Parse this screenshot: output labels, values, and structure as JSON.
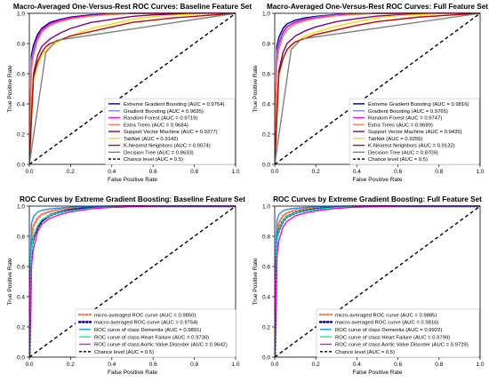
{
  "chart_data": [
    {
      "type": "line",
      "title": "Macro-Averaged One-Versus-Rest ROC Curves: Baseline Feature Set",
      "xlabel": "False Positive Rate",
      "ylabel": "True Positive Rate",
      "xlim": [
        0,
        1
      ],
      "ylim": [
        0,
        1
      ],
      "xticks": [
        0.0,
        0.2,
        0.4,
        0.6,
        0.8,
        1.0
      ],
      "yticks": [
        0.0,
        0.2,
        0.4,
        0.6,
        0.8,
        1.0
      ],
      "grid": false,
      "legend_loc": "bottom-right",
      "series": [
        {
          "name": "Extreme Gradient Boosting (AUC = 0.9754)",
          "color": "#000080",
          "style": "solid",
          "x": [
            0,
            0.01,
            0.02,
            0.04,
            0.06,
            0.1,
            0.15,
            0.2,
            0.3,
            0.4,
            0.5,
            0.6,
            0.8,
            1.0
          ],
          "y": [
            0,
            0.72,
            0.79,
            0.86,
            0.9,
            0.94,
            0.96,
            0.975,
            0.99,
            0.995,
            1,
            1,
            1,
            1
          ]
        },
        {
          "name": "Gradient Boosting (AUC = 0.9695)",
          "color": "#6495ED",
          "style": "solid",
          "x": [
            0,
            0.01,
            0.02,
            0.04,
            0.06,
            0.1,
            0.15,
            0.2,
            0.3,
            0.4,
            0.5,
            0.6,
            0.8,
            1.0
          ],
          "y": [
            0,
            0.68,
            0.76,
            0.84,
            0.88,
            0.925,
            0.95,
            0.965,
            0.985,
            0.993,
            1,
            1,
            1,
            1
          ]
        },
        {
          "name": "Random Forest (AUC = 0.9719)",
          "color": "#FF00FF",
          "style": "solid",
          "x": [
            0,
            0.01,
            0.02,
            0.04,
            0.06,
            0.1,
            0.15,
            0.2,
            0.3,
            0.4,
            0.5,
            0.6,
            0.8,
            1.0
          ],
          "y": [
            0,
            0.64,
            0.74,
            0.84,
            0.89,
            0.93,
            0.955,
            0.97,
            0.985,
            0.994,
            1,
            1,
            1,
            1
          ]
        },
        {
          "name": "Extra Trees (AUC = 0.9684)",
          "color": "#FF7F50",
          "style": "solid",
          "x": [
            0,
            0.01,
            0.02,
            0.04,
            0.06,
            0.1,
            0.15,
            0.2,
            0.3,
            0.4,
            0.5,
            0.6,
            0.8,
            1.0
          ],
          "y": [
            0,
            0.62,
            0.72,
            0.82,
            0.875,
            0.92,
            0.945,
            0.962,
            0.982,
            0.992,
            1,
            1,
            1,
            1
          ]
        },
        {
          "name": "Support Vector Machine (AUC = 0.9377)",
          "color": "#800080",
          "style": "solid",
          "x": [
            0,
            0.02,
            0.04,
            0.06,
            0.1,
            0.15,
            0.2,
            0.3,
            0.4,
            0.5,
            0.6,
            0.8,
            1.0
          ],
          "y": [
            0,
            0.6,
            0.72,
            0.78,
            0.83,
            0.87,
            0.9,
            0.94,
            0.96,
            0.98,
            0.99,
            1,
            1
          ]
        },
        {
          "name": "TabNet (AUC = 0.9142)",
          "color": "#FFD700",
          "style": "solid",
          "x": [
            0,
            0.02,
            0.04,
            0.06,
            0.1,
            0.15,
            0.2,
            0.3,
            0.4,
            0.5,
            0.6,
            0.8,
            1.0
          ],
          "y": [
            0,
            0.55,
            0.66,
            0.72,
            0.78,
            0.82,
            0.85,
            0.9,
            0.93,
            0.96,
            0.98,
            0.995,
            1
          ]
        },
        {
          "name": "K-Nearest Neighbors (AUC = 0.9074)",
          "color": "#CC0000",
          "style": "solid",
          "x": [
            0,
            0.02,
            0.04,
            0.06,
            0.08,
            0.1,
            0.2,
            0.3,
            0.4,
            0.5,
            0.7,
            0.9,
            1.0
          ],
          "y": [
            0,
            0.58,
            0.68,
            0.74,
            0.78,
            0.8,
            0.85,
            0.88,
            0.91,
            0.94,
            0.97,
            0.99,
            1
          ]
        },
        {
          "name": "Decision Tree (AUC = 0.8633)",
          "color": "#808080",
          "style": "solid",
          "x": [
            0,
            0.08,
            0.13,
            1.0
          ],
          "y": [
            0,
            0.74,
            0.82,
            1
          ]
        },
        {
          "name": "Chance level (AUC = 0.5)",
          "color": "#000000",
          "style": "dashed",
          "x": [
            0,
            1
          ],
          "y": [
            0,
            1
          ]
        }
      ]
    },
    {
      "type": "line",
      "title": "Macro-Averaged One-Versus-Rest ROC Curves: Full Feature Set",
      "xlabel": "False Positive Rate",
      "ylabel": "True Positive Rate",
      "xlim": [
        0,
        1
      ],
      "ylim": [
        0,
        1
      ],
      "xticks": [
        0.0,
        0.2,
        0.4,
        0.6,
        0.8,
        1.0
      ],
      "yticks": [
        0.0,
        0.2,
        0.4,
        0.6,
        0.8,
        1.0
      ],
      "grid": false,
      "legend_loc": "bottom-right",
      "series": [
        {
          "name": "Extreme Gradient Boosting (AUC = 0.9816)",
          "color": "#000080",
          "style": "solid",
          "x": [
            0,
            0.01,
            0.02,
            0.04,
            0.06,
            0.1,
            0.15,
            0.2,
            0.3,
            0.4,
            0.5,
            0.6,
            0.8,
            1.0
          ],
          "y": [
            0,
            0.78,
            0.84,
            0.9,
            0.93,
            0.955,
            0.97,
            0.98,
            0.992,
            0.997,
            1,
            1,
            1,
            1
          ]
        },
        {
          "name": "Gradient Boosting (AUC = 0.9765)",
          "color": "#6495ED",
          "style": "solid",
          "x": [
            0,
            0.01,
            0.02,
            0.04,
            0.06,
            0.1,
            0.15,
            0.2,
            0.3,
            0.4,
            0.5,
            0.6,
            0.8,
            1.0
          ],
          "y": [
            0,
            0.74,
            0.81,
            0.88,
            0.915,
            0.945,
            0.962,
            0.975,
            0.99,
            0.996,
            1,
            1,
            1,
            1
          ]
        },
        {
          "name": "Random Forest (AUC = 0.9747)",
          "color": "#FF00FF",
          "style": "solid",
          "x": [
            0,
            0.01,
            0.02,
            0.04,
            0.06,
            0.1,
            0.15,
            0.2,
            0.3,
            0.4,
            0.5,
            0.6,
            0.8,
            1.0
          ],
          "y": [
            0,
            0.7,
            0.79,
            0.87,
            0.91,
            0.94,
            0.96,
            0.972,
            0.988,
            0.995,
            1,
            1,
            1,
            1
          ]
        },
        {
          "name": "Extra Trees (AUC = 0.9689)",
          "color": "#FF7F50",
          "style": "solid",
          "x": [
            0,
            0.01,
            0.02,
            0.04,
            0.06,
            0.1,
            0.15,
            0.2,
            0.3,
            0.4,
            0.5,
            0.6,
            0.8,
            1.0
          ],
          "y": [
            0,
            0.66,
            0.76,
            0.85,
            0.89,
            0.93,
            0.952,
            0.966,
            0.984,
            0.993,
            1,
            1,
            1,
            1
          ]
        },
        {
          "name": "Support Vector Machine (AUC = 0.9435)",
          "color": "#800080",
          "style": "solid",
          "x": [
            0,
            0.02,
            0.04,
            0.06,
            0.1,
            0.15,
            0.2,
            0.3,
            0.4,
            0.5,
            0.6,
            0.8,
            1.0
          ],
          "y": [
            0,
            0.62,
            0.74,
            0.8,
            0.85,
            0.885,
            0.91,
            0.945,
            0.965,
            0.982,
            0.99,
            1,
            1
          ]
        },
        {
          "name": "TabNet (AUC = 0.9255)",
          "color": "#FFD700",
          "style": "solid",
          "x": [
            0,
            0.02,
            0.04,
            0.06,
            0.1,
            0.15,
            0.2,
            0.3,
            0.4,
            0.5,
            0.6,
            0.8,
            1.0
          ],
          "y": [
            0,
            0.58,
            0.7,
            0.76,
            0.81,
            0.85,
            0.875,
            0.915,
            0.945,
            0.97,
            0.985,
            0.997,
            1
          ]
        },
        {
          "name": "K-Nearest Neighbors (AUC = 0.9132)",
          "color": "#CC0000",
          "style": "solid",
          "x": [
            0,
            0.02,
            0.04,
            0.06,
            0.08,
            0.1,
            0.2,
            0.3,
            0.4,
            0.5,
            0.7,
            0.9,
            1.0
          ],
          "y": [
            0,
            0.6,
            0.7,
            0.76,
            0.79,
            0.81,
            0.86,
            0.89,
            0.92,
            0.945,
            0.975,
            0.992,
            1
          ]
        },
        {
          "name": "Decision Tree (AUC = 0.8709)",
          "color": "#808080",
          "style": "solid",
          "x": [
            0,
            0.08,
            0.13,
            1.0
          ],
          "y": [
            0,
            0.76,
            0.83,
            1
          ]
        },
        {
          "name": "Chance level (AUC = 0.5)",
          "color": "#000000",
          "style": "dashed",
          "x": [
            0,
            1
          ],
          "y": [
            0,
            1
          ]
        }
      ]
    },
    {
      "type": "line",
      "title": "ROC Curves by Extreme Gradient Boosting: Baseline Feature Set",
      "xlabel": "False Positive Rate",
      "ylabel": "True Positive Rate",
      "xlim": [
        0,
        1
      ],
      "ylim": [
        0,
        1
      ],
      "xticks": [
        0.0,
        0.2,
        0.4,
        0.6,
        0.8,
        1.0
      ],
      "yticks": [
        0.0,
        0.2,
        0.4,
        0.6,
        0.8,
        1.0
      ],
      "grid": false,
      "legend_loc": "bottom-right",
      "series": [
        {
          "name": "micro-averaged ROC curve (AUC = 0.9850)",
          "color": "#FF7F50",
          "style": "dotted",
          "x": [
            0,
            0.01,
            0.02,
            0.04,
            0.06,
            0.1,
            0.15,
            0.2,
            0.3,
            0.4,
            0.5,
            1.0
          ],
          "y": [
            0,
            0.78,
            0.87,
            0.92,
            0.945,
            0.965,
            0.978,
            0.987,
            0.995,
            0.999,
            1,
            1
          ]
        },
        {
          "name": "macro-averaged ROC curve (AUC = 0.9754)",
          "color": "#000080",
          "style": "dotted",
          "x": [
            0,
            0.01,
            0.02,
            0.04,
            0.06,
            0.1,
            0.15,
            0.2,
            0.3,
            0.4,
            0.5,
            1.0
          ],
          "y": [
            0,
            0.72,
            0.79,
            0.86,
            0.9,
            0.94,
            0.96,
            0.975,
            0.99,
            0.995,
            1,
            1
          ]
        },
        {
          "name": "ROC curve of class Dementia (AUC = 0.9891)",
          "color": "#1E90FF",
          "style": "solid",
          "x": [
            0,
            0.01,
            0.02,
            0.04,
            0.06,
            0.1,
            0.15,
            0.2,
            0.3,
            0.4,
            0.6,
            1.0
          ],
          "y": [
            0,
            0.88,
            0.93,
            0.96,
            0.972,
            0.982,
            0.988,
            0.993,
            0.997,
            1,
            1,
            1
          ]
        },
        {
          "name": "ROC curve of class Heart Failure (AUC = 0.9730)",
          "color": "#00FA9A",
          "style": "solid",
          "x": [
            0,
            0.01,
            0.02,
            0.04,
            0.06,
            0.1,
            0.15,
            0.2,
            0.3,
            0.4,
            0.6,
            1.0
          ],
          "y": [
            0,
            0.7,
            0.8,
            0.87,
            0.91,
            0.94,
            0.958,
            0.97,
            0.985,
            0.994,
            1,
            1
          ]
        },
        {
          "name": "ROC curve of class Aortic Valve Disorder (AUC = 0.9642)",
          "color": "#FF00FF",
          "style": "solid",
          "x": [
            0,
            0.01,
            0.02,
            0.04,
            0.06,
            0.1,
            0.15,
            0.2,
            0.3,
            0.4,
            0.6,
            1.0
          ],
          "y": [
            0,
            0.6,
            0.72,
            0.83,
            0.88,
            0.92,
            0.945,
            0.962,
            0.982,
            0.992,
            1,
            1
          ]
        },
        {
          "name": "Chance level (AUC = 0.5)",
          "color": "#000000",
          "style": "dashed",
          "x": [
            0,
            1
          ],
          "y": [
            0,
            1
          ]
        }
      ]
    },
    {
      "type": "line",
      "title": "ROC Curves by Extreme Gradient Boosting: Full Feature Set",
      "xlabel": "False Positive Rate",
      "ylabel": "True Positive Rate",
      "xlim": [
        0,
        1
      ],
      "ylim": [
        0,
        1
      ],
      "xticks": [
        0.0,
        0.2,
        0.4,
        0.6,
        0.8,
        1.0
      ],
      "yticks": [
        0.0,
        0.2,
        0.4,
        0.6,
        0.8,
        1.0
      ],
      "grid": false,
      "legend_loc": "bottom-right",
      "series": [
        {
          "name": "micro-averaged ROC curve (AUC = 0.9885)",
          "color": "#FF7F50",
          "style": "dotted",
          "x": [
            0,
            0.01,
            0.02,
            0.04,
            0.06,
            0.1,
            0.15,
            0.2,
            0.3,
            0.4,
            0.5,
            1.0
          ],
          "y": [
            0,
            0.82,
            0.89,
            0.935,
            0.955,
            0.972,
            0.983,
            0.99,
            0.996,
            0.999,
            1,
            1
          ]
        },
        {
          "name": "macro-averaged ROC curve (AUC = 0.9816)",
          "color": "#000080",
          "style": "dotted",
          "x": [
            0,
            0.01,
            0.02,
            0.04,
            0.06,
            0.1,
            0.15,
            0.2,
            0.3,
            0.4,
            0.5,
            1.0
          ],
          "y": [
            0,
            0.78,
            0.84,
            0.9,
            0.93,
            0.955,
            0.97,
            0.98,
            0.992,
            0.997,
            1,
            1
          ]
        },
        {
          "name": "ROC curve of class Dementia (AUC = 0.9922)",
          "color": "#1E90FF",
          "style": "solid",
          "x": [
            0,
            0.01,
            0.02,
            0.04,
            0.06,
            0.1,
            0.15,
            0.2,
            0.3,
            0.4,
            0.6,
            1.0
          ],
          "y": [
            0,
            0.9,
            0.945,
            0.968,
            0.978,
            0.986,
            0.991,
            0.995,
            0.998,
            1,
            1,
            1
          ]
        },
        {
          "name": "ROC curve of class Heart Failure (AUC = 0.9799)",
          "color": "#00FA9A",
          "style": "solid",
          "x": [
            0,
            0.01,
            0.02,
            0.04,
            0.06,
            0.1,
            0.15,
            0.2,
            0.3,
            0.4,
            0.6,
            1.0
          ],
          "y": [
            0,
            0.75,
            0.84,
            0.9,
            0.93,
            0.955,
            0.968,
            0.978,
            0.99,
            0.996,
            1,
            1
          ]
        },
        {
          "name": "ROC curve of class Aortic Valve Disorder (AUC = 0.9729)",
          "color": "#FF00FF",
          "style": "solid",
          "x": [
            0,
            0.01,
            0.02,
            0.04,
            0.06,
            0.1,
            0.15,
            0.2,
            0.3,
            0.4,
            0.6,
            1.0
          ],
          "y": [
            0,
            0.66,
            0.77,
            0.86,
            0.9,
            0.935,
            0.955,
            0.968,
            0.985,
            0.994,
            1,
            1
          ]
        },
        {
          "name": "Chance level (AUC = 0.5)",
          "color": "#000000",
          "style": "dashed",
          "x": [
            0,
            1
          ],
          "y": [
            0,
            1
          ]
        }
      ]
    }
  ]
}
